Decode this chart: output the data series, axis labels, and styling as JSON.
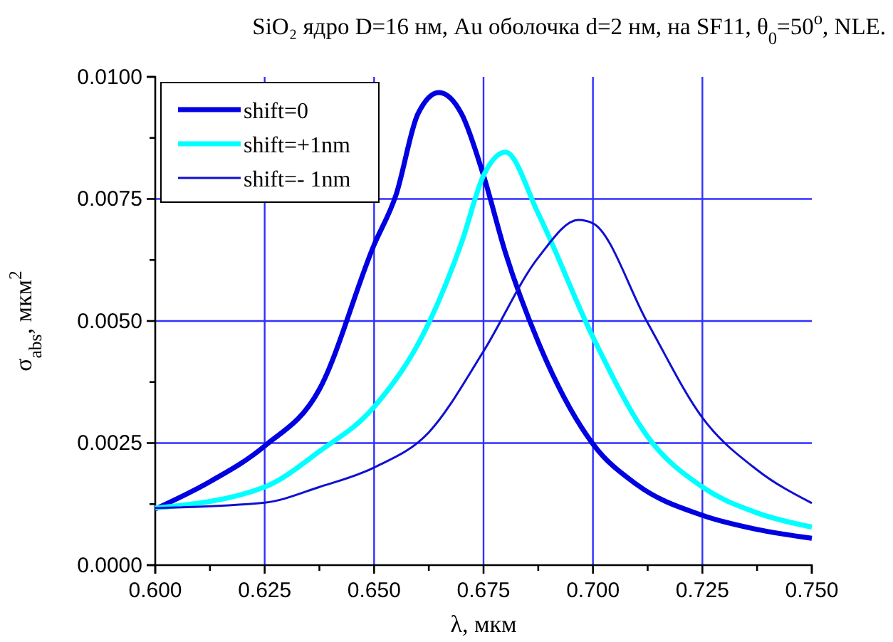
{
  "chart_data": {
    "type": "line",
    "title": "SiO₂ ядро D=16 нм, Au оболочка d=2 нм, на SF11, θ$_{0}$=50$^{o}$, NLE.",
    "xlabel": "λ, мкм",
    "ylabel": "σ$_{abs}$, мкм$^{2}$",
    "xlim": [
      0.6,
      0.75
    ],
    "ylim": [
      0,
      0.01
    ],
    "xticks": [
      {
        "value": 0.6,
        "label": "0.600"
      },
      {
        "value": 0.6125,
        "label": null
      },
      {
        "value": 0.625,
        "label": "0.625"
      },
      {
        "value": 0.6375,
        "label": null
      },
      {
        "value": 0.65,
        "label": "0.650"
      },
      {
        "value": 0.6625,
        "label": null
      },
      {
        "value": 0.675,
        "label": "0.675"
      },
      {
        "value": 0.6875,
        "label": null
      },
      {
        "value": 0.7,
        "label": "0.700"
      },
      {
        "value": 0.7125,
        "label": null
      },
      {
        "value": 0.725,
        "label": "0.725"
      },
      {
        "value": 0.7375,
        "label": null
      },
      {
        "value": 0.75,
        "label": "0.750"
      }
    ],
    "yticks": [
      {
        "value": 0,
        "label": "0.0000"
      },
      {
        "value": 0.00125,
        "label": null
      },
      {
        "value": 0.0025,
        "label": "0.0025"
      },
      {
        "value": 0.00375,
        "label": null
      },
      {
        "value": 0.005,
        "label": "0.0050"
      },
      {
        "value": 0.00625,
        "label": null
      },
      {
        "value": 0.0075,
        "label": "0.0075"
      },
      {
        "value": 0.00875,
        "label": null
      },
      {
        "value": 0.01,
        "label": "0.0100"
      }
    ],
    "grid": true,
    "legend": "top left",
    "line_style": "solid",
    "marker": "none",
    "series": [
      {
        "name": "shift=0",
        "color": "#0000e0",
        "x": [
          0.6,
          0.6125,
          0.625,
          0.6375,
          0.65,
          0.655,
          0.66,
          0.6648,
          0.67,
          0.675,
          0.68,
          0.6875,
          0.7,
          0.71,
          0.725,
          0.7375,
          0.75
        ],
        "values": [
          0.00115,
          0.00171,
          0.00244,
          0.0036,
          0.00656,
          0.00758,
          0.00924,
          0.00968,
          0.00924,
          0.00798,
          0.0064,
          0.00457,
          0.00248,
          0.00165,
          0.00102,
          0.00073,
          0.00055
        ]
      },
      {
        "name": "shift=+1nm",
        "color": "#00ffff",
        "x": [
          0.6,
          0.625,
          0.6375,
          0.65,
          0.6625,
          0.67,
          0.675,
          0.68,
          0.6875,
          0.7,
          0.7125,
          0.725,
          0.7375,
          0.75
        ],
        "values": [
          0.00117,
          0.0016,
          0.00233,
          0.00324,
          0.00496,
          0.00661,
          0.00798,
          0.00846,
          0.0072,
          0.00467,
          0.00263,
          0.0016,
          0.00107,
          0.00078
        ]
      },
      {
        "name": "shift=- 1nm",
        "color": "#1010d0",
        "x": [
          0.6,
          0.625,
          0.6375,
          0.65,
          0.6625,
          0.675,
          0.6875,
          0.6967,
          0.7,
          0.7125,
          0.725,
          0.7375,
          0.75
        ],
        "values": [
          0.00117,
          0.00128,
          0.0016,
          0.002,
          0.00272,
          0.00438,
          0.0063,
          0.00707,
          0.007,
          0.00496,
          0.00302,
          0.00195,
          0.00127
        ]
      }
    ]
  }
}
